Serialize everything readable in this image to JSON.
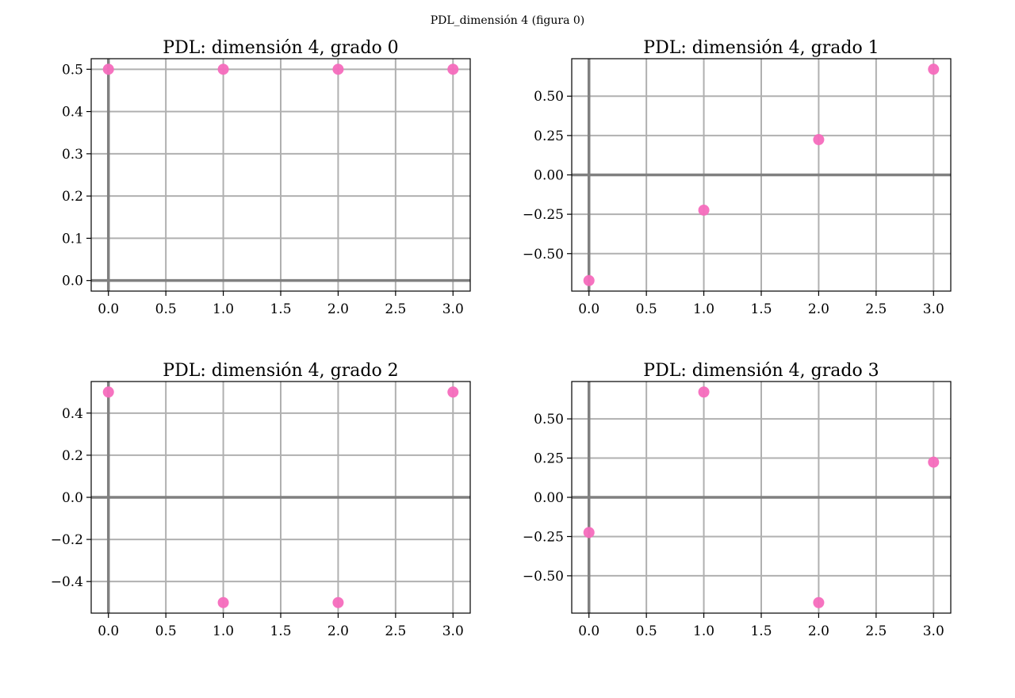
{
  "figure": {
    "title": "PDL_dimensión 4 (figura 0)"
  },
  "style": {
    "marker_color": "#f56bbd",
    "grid_color": "#b0b0b0",
    "axis_line_color": "#808080"
  },
  "chart_data": [
    {
      "type": "scatter",
      "title": "PDL: dimensión 4, grado 0",
      "x": [
        0,
        1,
        2,
        3
      ],
      "y": [
        0.5,
        0.5,
        0.5,
        0.5
      ],
      "xlim": [
        -0.15,
        3.15
      ],
      "ylim": [
        -0.025,
        0.525
      ],
      "xticks": [
        "0.0",
        "0.5",
        "1.0",
        "1.5",
        "2.0",
        "2.5",
        "3.0"
      ],
      "yticks": [
        "0.0",
        "0.1",
        "0.2",
        "0.3",
        "0.4",
        "0.5"
      ],
      "grid": true
    },
    {
      "type": "scatter",
      "title": "PDL: dimensión 4, grado 1",
      "x": [
        0,
        1,
        2,
        3
      ],
      "y": [
        -0.671,
        -0.224,
        0.224,
        0.671
      ],
      "xlim": [
        -0.15,
        3.15
      ],
      "ylim": [
        -0.738,
        0.738
      ],
      "xticks": [
        "0.0",
        "0.5",
        "1.0",
        "1.5",
        "2.0",
        "2.5",
        "3.0"
      ],
      "yticks": [
        "−0.50",
        "−0.25",
        "0.00",
        "0.25",
        "0.50"
      ],
      "grid": true
    },
    {
      "type": "scatter",
      "title": "PDL: dimensión 4, grado 2",
      "x": [
        0,
        1,
        2,
        3
      ],
      "y": [
        0.5,
        -0.5,
        -0.5,
        0.5
      ],
      "xlim": [
        -0.15,
        3.15
      ],
      "ylim": [
        -0.55,
        0.55
      ],
      "xticks": [
        "0.0",
        "0.5",
        "1.0",
        "1.5",
        "2.0",
        "2.5",
        "3.0"
      ],
      "yticks": [
        "−0.4",
        "−0.2",
        "0.0",
        "0.2",
        "0.4"
      ],
      "grid": true
    },
    {
      "type": "scatter",
      "title": "PDL: dimensión 4, grado 3",
      "x": [
        0,
        1,
        2,
        3
      ],
      "y": [
        -0.224,
        0.671,
        -0.671,
        0.224
      ],
      "xlim": [
        -0.15,
        3.15
      ],
      "ylim": [
        -0.738,
        0.738
      ],
      "xticks": [
        "0.0",
        "0.5",
        "1.0",
        "1.5",
        "2.0",
        "2.5",
        "3.0"
      ],
      "yticks": [
        "−0.50",
        "−0.25",
        "0.00",
        "0.25",
        "0.50"
      ],
      "grid": true
    }
  ]
}
